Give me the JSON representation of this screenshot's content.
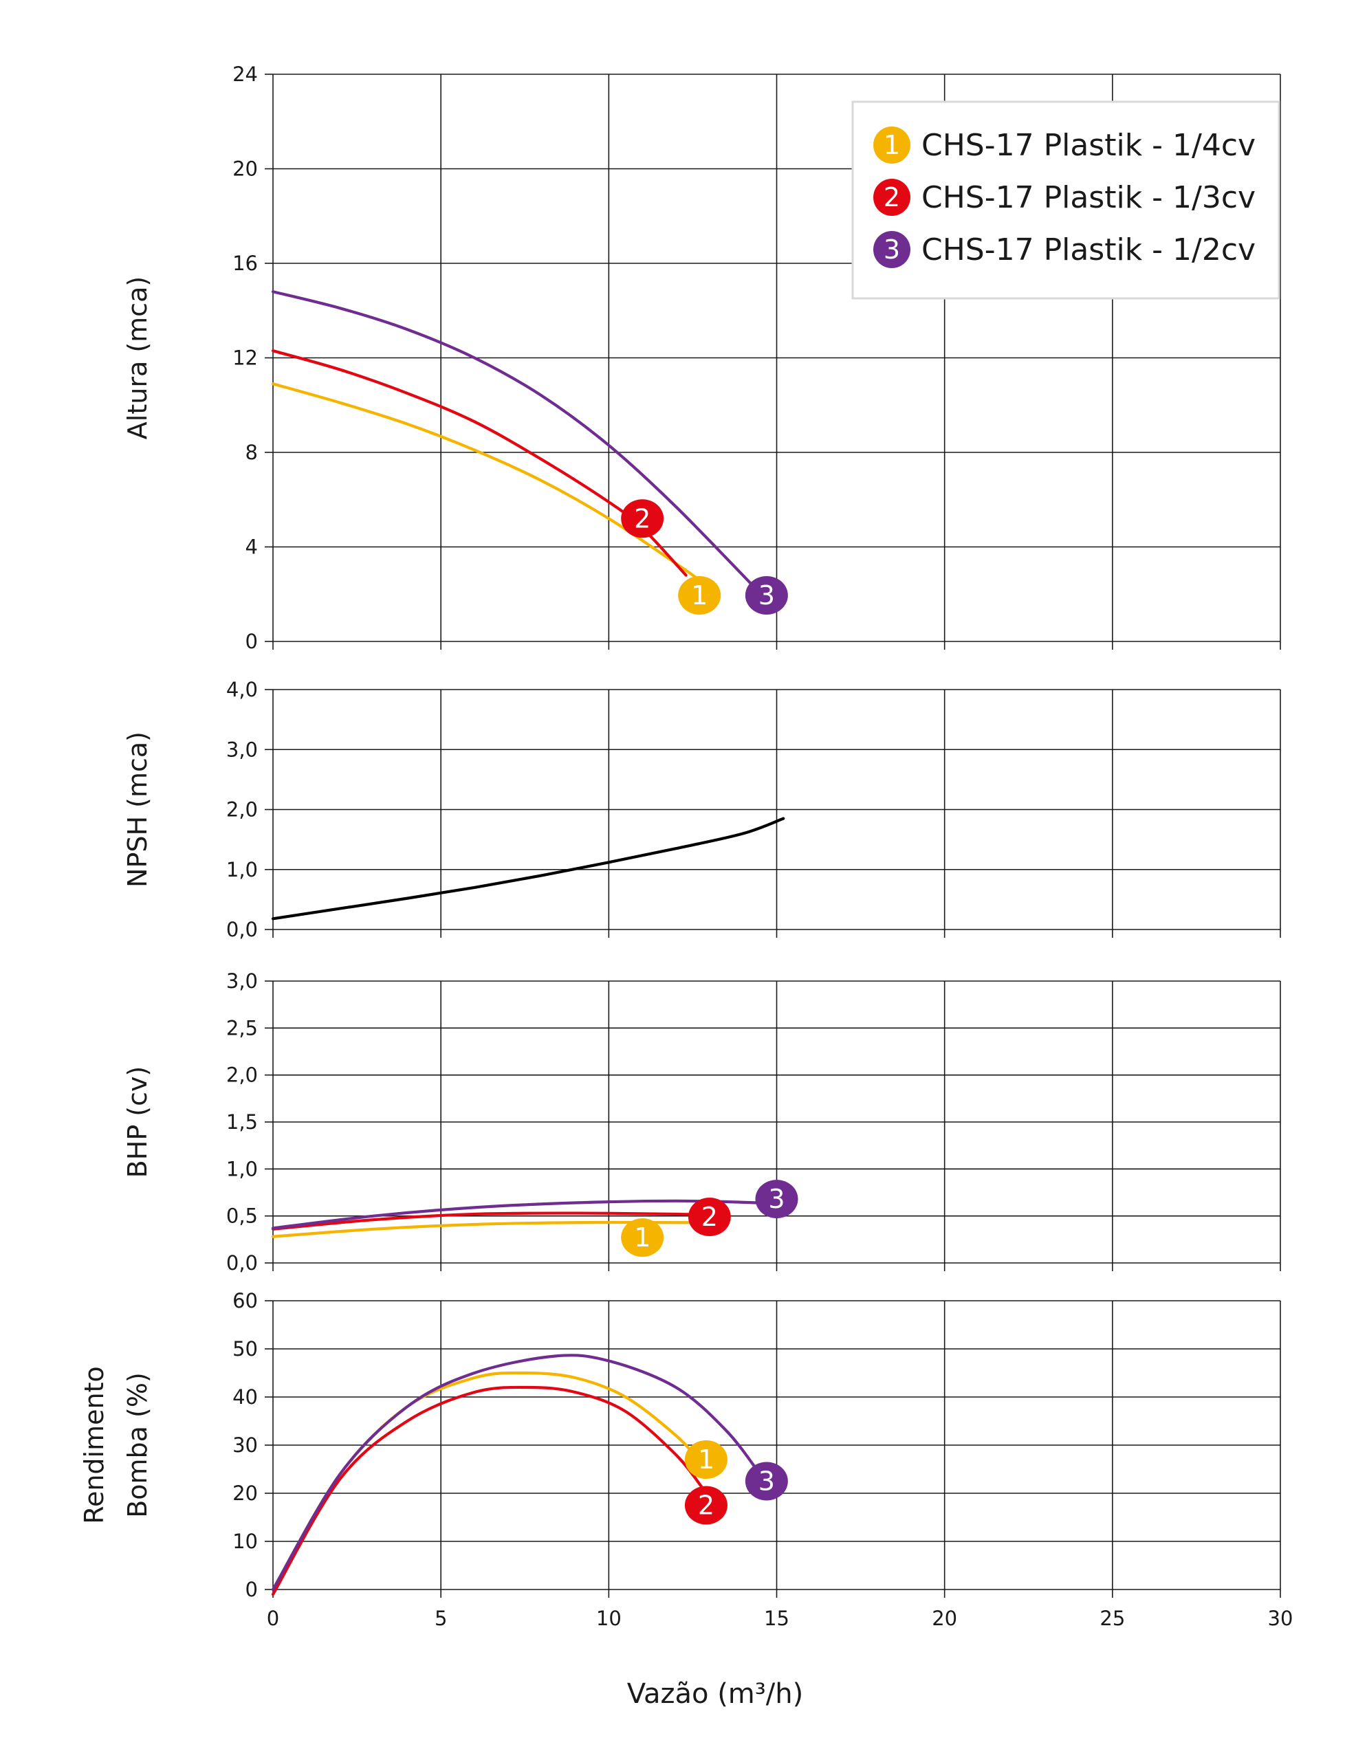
{
  "chart_data": [
    {
      "type": "line",
      "ylabel": "Altura (mca)",
      "xlim": [
        0,
        30
      ],
      "ylim": [
        0,
        24
      ],
      "x_ticks": [
        "0",
        "5",
        "10",
        "15",
        "20",
        "25",
        "30"
      ],
      "y_ticks": [
        "0",
        "4",
        "8",
        "12",
        "16",
        "20",
        "24"
      ],
      "grid": true,
      "legend_position": "top-right",
      "series": [
        {
          "name": "CHS-17 Plastik - 1/4cv",
          "marker": "1",
          "color": "#F5B400",
          "x": [
            0,
            2,
            4,
            6,
            8,
            10,
            12,
            12.7
          ],
          "y": [
            10.9,
            10.1,
            9.2,
            8.1,
            6.8,
            5.2,
            3.3,
            2.6
          ]
        },
        {
          "name": "CHS-17 Plastik - 1/3cv",
          "marker": "2",
          "color": "#E30613",
          "x": [
            0,
            2,
            4,
            6,
            8,
            10,
            11,
            12.3
          ],
          "y": [
            12.3,
            11.5,
            10.5,
            9.3,
            7.7,
            5.9,
            4.8,
            2.8
          ]
        },
        {
          "name": "CHS-17 Plastik - 1/2cv",
          "marker": "3",
          "color": "#6F2C91",
          "x": [
            0,
            2,
            4,
            6,
            8,
            10,
            12,
            14.4
          ],
          "y": [
            14.8,
            14.1,
            13.2,
            12.0,
            10.4,
            8.3,
            5.7,
            2.2
          ]
        }
      ]
    },
    {
      "type": "line",
      "ylabel": "NPSH (mca)",
      "xlim": [
        0,
        30
      ],
      "ylim": [
        0,
        4
      ],
      "y_ticks": [
        "0,0",
        "1,0",
        "2,0",
        "3,0",
        "4,0"
      ],
      "grid": true,
      "series": [
        {
          "color": "#000000",
          "x": [
            0,
            2,
            4,
            6,
            8,
            10,
            12,
            14,
            15.2
          ],
          "y": [
            0.18,
            0.35,
            0.52,
            0.7,
            0.9,
            1.12,
            1.35,
            1.6,
            1.85
          ]
        }
      ]
    },
    {
      "type": "line",
      "ylabel": "BHP (cv)",
      "xlim": [
        0,
        30
      ],
      "ylim": [
        0,
        3
      ],
      "y_ticks": [
        "0,0",
        "0,5",
        "1,0",
        "1,5",
        "2,0",
        "2,5",
        "3,0"
      ],
      "grid": true,
      "series": [
        {
          "marker": "1",
          "color": "#F5B400",
          "x": [
            0,
            3,
            6,
            9,
            12,
            12.7
          ],
          "y": [
            0.28,
            0.36,
            0.41,
            0.43,
            0.43,
            0.43
          ]
        },
        {
          "marker": "2",
          "color": "#E30613",
          "x": [
            0,
            3,
            6,
            9,
            12,
            12.8
          ],
          "y": [
            0.36,
            0.46,
            0.52,
            0.53,
            0.52,
            0.51
          ]
        },
        {
          "marker": "3",
          "color": "#6F2C91",
          "x": [
            0,
            3,
            6,
            9,
            12,
            14.5
          ],
          "y": [
            0.37,
            0.5,
            0.59,
            0.64,
            0.66,
            0.64
          ]
        }
      ]
    },
    {
      "type": "line",
      "ylabel_lines": [
        "Rendimento",
        "Bomba (%)"
      ],
      "xlabel": "Vazão (m³/h)",
      "xlim": [
        0,
        30
      ],
      "ylim": [
        0,
        60
      ],
      "x_ticks": [
        "0",
        "5",
        "10",
        "15",
        "20",
        "25",
        "30"
      ],
      "y_ticks": [
        "0",
        "10",
        "20",
        "30",
        "40",
        "50",
        "60"
      ],
      "grid": true,
      "series": [
        {
          "marker": "1",
          "color": "#F5B400",
          "x": [
            0,
            2,
            4,
            6,
            7.5,
            9,
            10.5,
            12,
            12.8
          ],
          "y": [
            0,
            24,
            38,
            44,
            45,
            44,
            40,
            32,
            26
          ]
        },
        {
          "marker": "2",
          "color": "#E30613",
          "x": [
            0,
            2,
            4,
            6,
            7.6,
            9,
            10.5,
            12,
            12.8
          ],
          "y": [
            -1,
            23,
            35,
            41,
            42,
            41,
            37,
            28,
            21
          ]
        },
        {
          "marker": "3",
          "color": "#6F2C91",
          "x": [
            0,
            2,
            4,
            6,
            8.4,
            10,
            12,
            13.5,
            14.5
          ],
          "y": [
            0,
            24,
            38,
            45,
            48.5,
            47.5,
            42,
            33,
            24
          ]
        }
      ]
    }
  ],
  "markers": [
    {
      "panel": 0,
      "label": "2",
      "color": "#E30613",
      "x": 11.0,
      "y": 5.2
    },
    {
      "panel": 0,
      "label": "1",
      "color": "#F5B400",
      "x": 12.7,
      "y": 1.95
    },
    {
      "panel": 0,
      "label": "3",
      "color": "#6F2C91",
      "x": 14.7,
      "y": 1.95
    },
    {
      "panel": 2,
      "label": "3",
      "color": "#6F2C91",
      "x": 15.0,
      "y": 0.68
    },
    {
      "panel": 2,
      "label": "2",
      "color": "#E30613",
      "x": 13.0,
      "y": 0.49
    },
    {
      "panel": 2,
      "label": "1",
      "color": "#F5B400",
      "x": 11.0,
      "y": 0.27
    },
    {
      "panel": 3,
      "label": "1",
      "color": "#F5B400",
      "x": 12.9,
      "y": 27
    },
    {
      "panel": 3,
      "label": "3",
      "color": "#6F2C91",
      "x": 14.7,
      "y": 22.5
    },
    {
      "panel": 3,
      "label": "2",
      "color": "#E30613",
      "x": 12.9,
      "y": 17.5
    }
  ],
  "legend": [
    {
      "num": "1",
      "label": "CHS-17 Plastik - 1/4cv",
      "color": "#F5B400"
    },
    {
      "num": "2",
      "label": "CHS-17 Plastik - 1/3cv",
      "color": "#E30613"
    },
    {
      "num": "3",
      "label": "CHS-17 Plastik - 1/2cv",
      "color": "#6F2C91"
    }
  ]
}
